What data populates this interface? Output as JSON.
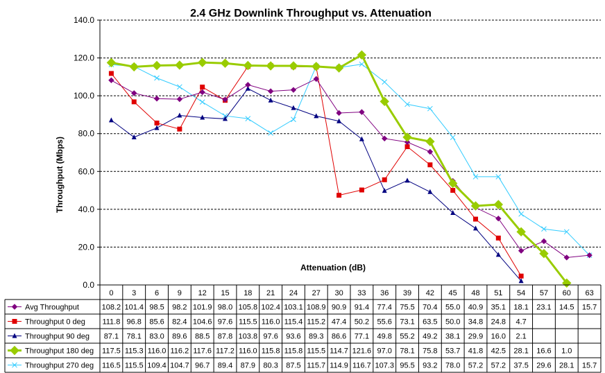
{
  "chart_data": {
    "type": "line",
    "title": "2.4 GHz Downlink Throughput vs. Attenuation",
    "xlabel": "Attenuation (dB)",
    "ylabel": "Throughput (Mbps)",
    "ylim": [
      0,
      140
    ],
    "yticks": [
      "0.0",
      "20.0",
      "40.0",
      "60.0",
      "80.0",
      "100.0",
      "120.0",
      "140.0"
    ],
    "grid": "horizontal dashed",
    "legend": "data table below plot",
    "categories": [
      "0",
      "3",
      "6",
      "9",
      "12",
      "15",
      "18",
      "21",
      "24",
      "27",
      "30",
      "33",
      "36",
      "39",
      "42",
      "45",
      "48",
      "51",
      "54",
      "57",
      "60",
      "63"
    ],
    "series": [
      {
        "name": "Avg Throughput",
        "color": "#800080",
        "marker": "diamond",
        "values": [
          108.2,
          101.4,
          98.5,
          98.2,
          101.9,
          98.0,
          105.8,
          102.4,
          103.1,
          108.9,
          90.9,
          91.4,
          77.4,
          75.5,
          70.4,
          55.0,
          40.9,
          35.1,
          18.1,
          23.1,
          14.5,
          15.7
        ],
        "labels": [
          "108.2",
          "101.4",
          "98.5",
          "98.2",
          "101.9",
          "98.0",
          "105.8",
          "102.4",
          "103.1",
          "108.9",
          "90.9",
          "91.4",
          "77.4",
          "75.5",
          "70.4",
          "55.0",
          "40.9",
          "35.1",
          "18.1",
          "23.1",
          "14.5",
          "15.7"
        ]
      },
      {
        "name": "Throughput 0 deg",
        "color": "#e00000",
        "marker": "square",
        "values": [
          111.8,
          96.8,
          85.6,
          82.4,
          104.6,
          97.6,
          115.5,
          116.0,
          115.4,
          115.2,
          47.4,
          50.2,
          55.6,
          73.1,
          63.5,
          50.0,
          34.8,
          24.8,
          4.7,
          null,
          null,
          null
        ],
        "labels": [
          "111.8",
          "96.8",
          "85.6",
          "82.4",
          "104.6",
          "97.6",
          "115.5",
          "116.0",
          "115.4",
          "115.2",
          "47.4",
          "50.2",
          "55.6",
          "73.1",
          "63.5",
          "50.0",
          "34.8",
          "24.8",
          "4.7",
          "",
          "",
          ""
        ]
      },
      {
        "name": "Throughput 90 deg",
        "color": "#000080",
        "marker": "triangle",
        "values": [
          87.1,
          78.1,
          83.0,
          89.6,
          88.5,
          87.8,
          103.8,
          97.6,
          93.6,
          89.3,
          86.6,
          77.1,
          49.8,
          55.2,
          49.2,
          38.1,
          29.9,
          16.0,
          2.1,
          null,
          null,
          null
        ],
        "labels": [
          "87.1",
          "78.1",
          "83.0",
          "89.6",
          "88.5",
          "87.8",
          "103.8",
          "97.6",
          "93.6",
          "89.3",
          "86.6",
          "77.1",
          "49.8",
          "55.2",
          "49.2",
          "38.1",
          "29.9",
          "16.0",
          "2.1",
          "",
          "",
          ""
        ]
      },
      {
        "name": "Throughput 180 deg",
        "color": "#99cc00",
        "marker": "diamond",
        "bold": true,
        "values": [
          117.5,
          115.3,
          116.0,
          116.2,
          117.6,
          117.2,
          116.0,
          115.8,
          115.8,
          115.5,
          114.7,
          121.6,
          97.0,
          78.1,
          75.8,
          53.7,
          41.8,
          42.5,
          28.1,
          16.6,
          1.0,
          null
        ],
        "labels": [
          "117.5",
          "115.3",
          "116.0",
          "116.2",
          "117.6",
          "117.2",
          "116.0",
          "115.8",
          "115.8",
          "115.5",
          "114.7",
          "121.6",
          "97.0",
          "78.1",
          "75.8",
          "53.7",
          "41.8",
          "42.5",
          "28.1",
          "16.6",
          "1.0",
          ""
        ]
      },
      {
        "name": "Throughput 270 deg",
        "color": "#33ccff",
        "marker": "x",
        "values": [
          116.5,
          115.5,
          109.4,
          104.7,
          96.7,
          89.4,
          87.9,
          80.3,
          87.5,
          115.7,
          114.9,
          116.7,
          107.3,
          95.5,
          93.2,
          78.0,
          57.2,
          57.2,
          37.5,
          29.6,
          28.1,
          15.7
        ],
        "labels": [
          "116.5",
          "115.5",
          "109.4",
          "104.7",
          "96.7",
          "89.4",
          "87.9",
          "80.3",
          "87.5",
          "115.7",
          "114.9",
          "116.7",
          "107.3",
          "95.5",
          "93.2",
          "78.0",
          "57.2",
          "57.2",
          "37.5",
          "29.6",
          "28.1",
          "15.7"
        ]
      }
    ]
  }
}
